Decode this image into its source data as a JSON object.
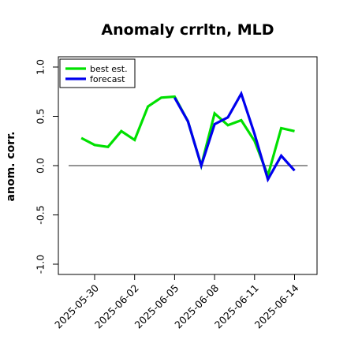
{
  "chart_data": {
    "type": "line",
    "title": "Anomaly crrltn, MLD",
    "xlabel": "",
    "ylabel": "anom. corr.",
    "ylim": [
      -1.05,
      1.12
    ],
    "yticks": [
      -1.0,
      -0.5,
      0.0,
      0.5,
      1.0
    ],
    "ytick_labels": [
      "-1.0",
      "-0.5",
      "0.0",
      "0.5",
      "1.0"
    ],
    "xticks": [
      "2025-05-30",
      "2025-06-02",
      "2025-06-05",
      "2025-06-08",
      "2025-06-11",
      "2025-06-14"
    ],
    "highlighted_xtick": "2025-06-05",
    "reference_line": 0.0,
    "x": [
      "2025-05-29",
      "2025-05-30",
      "2025-05-31",
      "2025-06-01",
      "2025-06-02",
      "2025-06-03",
      "2025-06-04",
      "2025-06-05",
      "2025-06-06",
      "2025-06-07",
      "2025-06-08",
      "2025-06-09",
      "2025-06-10",
      "2025-06-11",
      "2025-06-12",
      "2025-06-13",
      "2025-06-14"
    ],
    "series": [
      {
        "name": "best est.",
        "color": "#00e000",
        "values": [
          0.28,
          0.21,
          0.19,
          0.35,
          0.26,
          0.6,
          0.69,
          0.7,
          0.45,
          0.0,
          0.53,
          0.41,
          0.46,
          0.25,
          -0.1,
          0.38,
          0.35
        ]
      },
      {
        "name": "forecast",
        "color": "#0000ee",
        "values": [
          null,
          null,
          null,
          null,
          null,
          null,
          null,
          0.69,
          0.45,
          0.0,
          0.42,
          0.49,
          0.73,
          0.32,
          -0.14,
          0.1,
          -0.05
        ]
      }
    ],
    "legend_position": "top-left",
    "grid": false
  },
  "colors": {
    "tick_highlight": "#228b22",
    "axis": "#000000",
    "reference_line": "#555555"
  }
}
